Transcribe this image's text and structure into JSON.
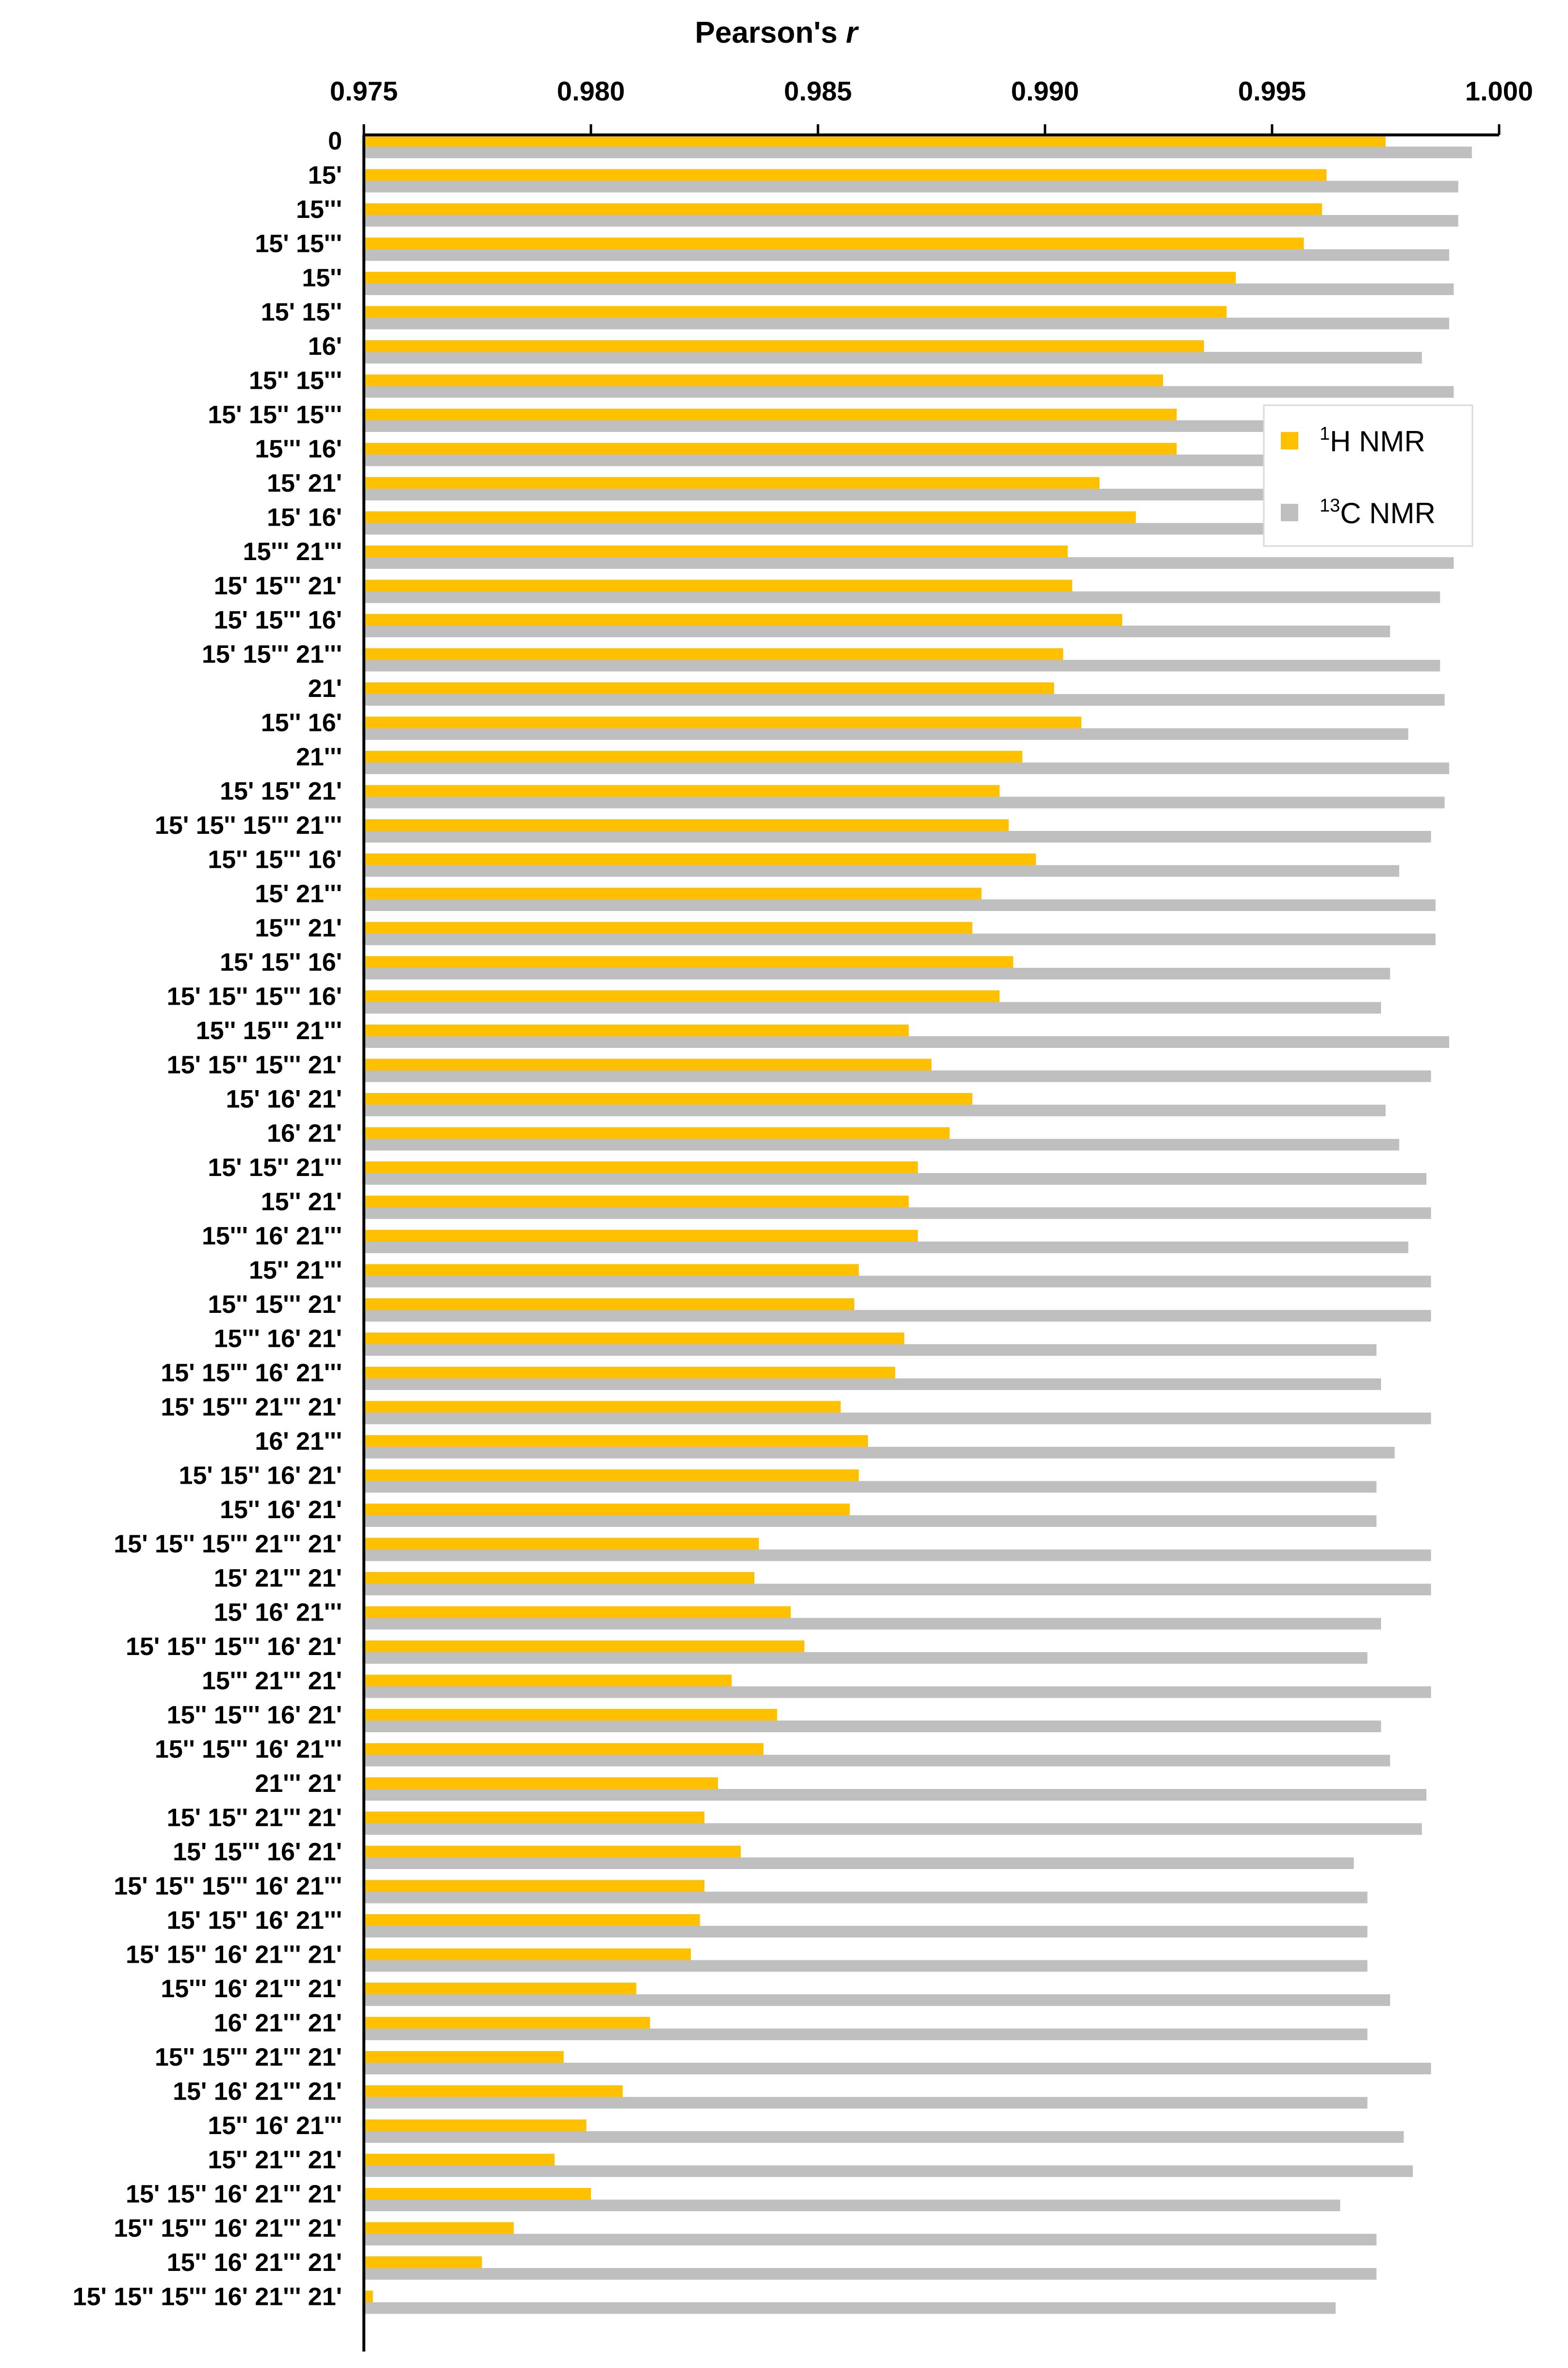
{
  "chart_data": {
    "type": "bar",
    "orientation": "horizontal",
    "title": "",
    "xlabel": "Pearson's r",
    "xlabel_prefix": "Pearson's ",
    "xlabel_var": "r",
    "ylabel": "",
    "xlim": [
      0.975,
      1.0
    ],
    "xticks": [
      "0.975",
      "0.980",
      "0.985",
      "0.990",
      "0.995",
      "1.000"
    ],
    "grid": false,
    "legend_position": "right, upper-middle",
    "legend": [
      {
        "sup": "1",
        "text": "H NMR",
        "color": "#FFC000"
      },
      {
        "sup": "13",
        "text": "C NMR",
        "color": "#BFBFBF"
      }
    ],
    "categories": [
      "0",
      "15'",
      "15'''",
      "15' 15'''",
      "15''",
      "15' 15''",
      "16'",
      "15'' 15'''",
      "15' 15'' 15'''",
      "15''' 16'",
      "15' 21'",
      "15' 16'",
      "15''' 21'''",
      "15' 15''' 21'",
      "15' 15''' 16'",
      "15' 15''' 21'''",
      "21'",
      "15'' 16'",
      "21'''",
      "15' 15'' 21'",
      "15' 15'' 15''' 21'''",
      "15'' 15''' 16'",
      "15' 21'''",
      "15''' 21'",
      "15' 15'' 16'",
      "15' 15'' 15''' 16'",
      "15'' 15''' 21'''",
      "15' 15'' 15''' 21'",
      "15' 16' 21'",
      "16' 21'",
      "15' 15'' 21'''",
      "15'' 21'",
      "15''' 16' 21'''",
      "15'' 21'''",
      "15'' 15''' 21'",
      "15''' 16' 21'",
      "15' 15''' 16' 21'''",
      "15' 15''' 21''' 21'",
      "16' 21'''",
      "15' 15'' 16' 21'",
      "15'' 16' 21'",
      "15' 15'' 15''' 21''' 21'",
      "15' 21''' 21'",
      "15' 16' 21'''",
      "15' 15'' 15''' 16' 21'",
      "15''' 21''' 21'",
      "15'' 15''' 16' 21'",
      "15'' 15''' 16' 21'''",
      "21''' 21'",
      "15' 15'' 21''' 21'",
      "15' 15''' 16' 21'",
      "15' 15'' 15''' 16' 21'''",
      "15' 15'' 16' 21'''",
      "15' 15'' 16' 21''' 21'",
      "15''' 16' 21''' 21'",
      "16' 21''' 21'",
      "15'' 15''' 21''' 21'",
      "15' 16' 21''' 21'",
      "15'' 16' 21'''",
      "15'' 21''' 21'",
      "15' 15'' 16' 21''' 21'",
      "15'' 15''' 16' 21''' 21'",
      "15'' 16' 21''' 21'",
      "15' 15'' 15''' 16' 21''' 21'"
    ],
    "series": [
      {
        "name": "1H NMR",
        "color": "#FFC000",
        "values": [
          0.9975,
          0.9962,
          0.9961,
          0.9957,
          0.9942,
          0.994,
          0.9935,
          0.9926,
          0.9929,
          0.9929,
          0.9912,
          0.992,
          0.9905,
          0.9906,
          0.9917,
          0.9904,
          0.9902,
          0.9908,
          0.9895,
          0.989,
          0.9892,
          0.9898,
          0.9886,
          0.9884,
          0.9893,
          0.989,
          0.987,
          0.9875,
          0.9884,
          0.9879,
          0.9872,
          0.987,
          0.9872,
          0.9859,
          0.9858,
          0.9869,
          0.9867,
          0.9855,
          0.9861,
          0.9859,
          0.9857,
          0.9837,
          0.9836,
          0.9844,
          0.9847,
          0.9831,
          0.9841,
          0.9838,
          0.9828,
          0.9825,
          0.9833,
          0.9825,
          0.9824,
          0.9822,
          0.981,
          0.9813,
          0.9794,
          0.9807,
          0.9799,
          0.9792,
          0.98,
          0.9783,
          0.9776,
          0.9752
        ]
      },
      {
        "name": "13C NMR",
        "color": "#BFBFBF",
        "values": [
          0.9994,
          0.9991,
          0.9991,
          0.9989,
          0.999,
          0.9989,
          0.9983,
          0.999,
          0.9987,
          0.9988,
          0.9988,
          0.9985,
          0.999,
          0.9987,
          0.9976,
          0.9987,
          0.9988,
          0.998,
          0.9989,
          0.9988,
          0.9985,
          0.9978,
          0.9986,
          0.9986,
          0.9976,
          0.9974,
          0.9989,
          0.9985,
          0.9975,
          0.9978,
          0.9984,
          0.9985,
          0.998,
          0.9985,
          0.9985,
          0.9973,
          0.9974,
          0.9985,
          0.9977,
          0.9973,
          0.9973,
          0.9985,
          0.9985,
          0.9974,
          0.9971,
          0.9985,
          0.9974,
          0.9976,
          0.9984,
          0.9983,
          0.9968,
          0.9971,
          0.9971,
          0.9971,
          0.9976,
          0.9971,
          0.9985,
          0.9971,
          0.9979,
          0.9981,
          0.9965,
          0.9973,
          0.9973,
          0.9964
        ]
      }
    ]
  }
}
